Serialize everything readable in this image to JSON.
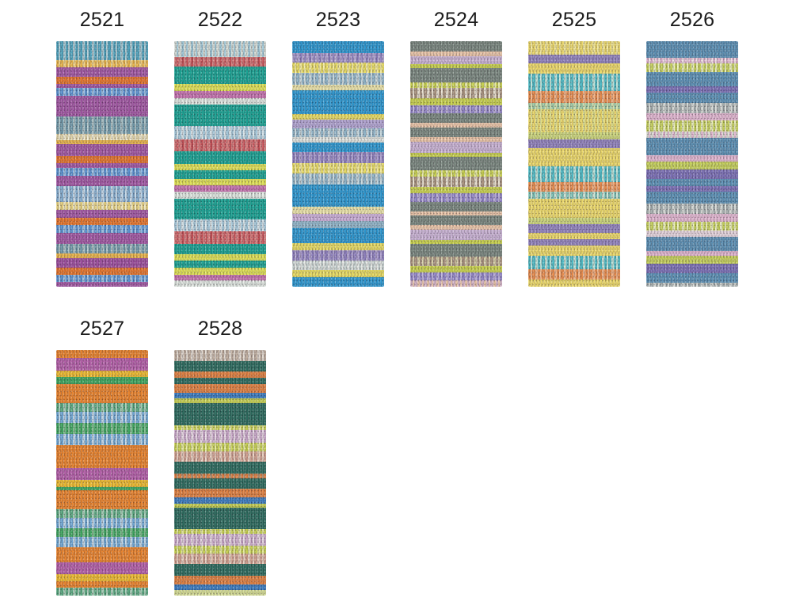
{
  "page": {
    "background": "#ffffff",
    "label_color": "#1c1c1c",
    "description": "Yarn shade card with knitted colorway swatches"
  },
  "swatches": [
    {
      "label": "2521",
      "stripes": [
        [
          "#4fa3bd",
          "#aac9d2",
          24
        ],
        [
          "#e9b54c",
          "#f2d488",
          9
        ],
        [
          "#a158a3",
          null,
          12
        ],
        [
          "#e4762e",
          null,
          9
        ],
        [
          "#a158a3",
          null,
          5
        ],
        [
          "#5a91d0",
          "#9cc0e4",
          10
        ],
        [
          "#a158a3",
          null,
          26
        ],
        [
          "#6f98a8",
          "#a9c0c4",
          22
        ],
        [
          "#e2d5a9",
          "#f0ead0",
          8
        ],
        [
          "#e9b54c",
          null,
          5
        ],
        [
          "#a158a3",
          null,
          15
        ],
        [
          "#e4762e",
          null,
          9
        ],
        [
          "#a158a3",
          null,
          6
        ],
        [
          "#5a91d0",
          "#9cc0e4",
          10
        ],
        [
          "#a158a3",
          null,
          13
        ],
        [
          "#82abcd",
          "#c4d8e8",
          20
        ],
        [
          "#e6d17f",
          "#f0e8c0",
          10
        ],
        [
          "#a158a3",
          null,
          10
        ],
        [
          "#e4762e",
          null,
          9
        ],
        [
          "#5a91d0",
          "#9cc0e4",
          10
        ],
        [
          "#a158a3",
          null,
          14
        ],
        [
          "#6f98a8",
          "#a9c0c4",
          12
        ],
        [
          "#e9b54c",
          null,
          6
        ],
        [
          "#9c4f9e",
          null,
          12
        ],
        [
          "#e4762e",
          null,
          9
        ],
        [
          "#5a91d0",
          "#9cc0e4",
          9
        ],
        [
          "#a158a3",
          null,
          6
        ]
      ]
    },
    {
      "label": "2522",
      "stripes": [
        [
          "#d6ded8",
          "#9fc8d8",
          20
        ],
        [
          "#d87e7e",
          "#c44f55",
          11
        ],
        [
          "#1ba293",
          null,
          22
        ],
        [
          "#dfe156",
          null,
          9
        ],
        [
          "#c472ae",
          null,
          8
        ],
        [
          "#d6ded8",
          "#e8eee8",
          8
        ],
        [
          "#1ba293",
          null,
          27
        ],
        [
          "#a5c8da",
          "#d8e4e8",
          16
        ],
        [
          "#d87e7e",
          "#c44f55",
          15
        ],
        [
          "#1ba293",
          null,
          15
        ],
        [
          "#dfe156",
          null,
          8
        ],
        [
          "#1ba293",
          null,
          11
        ],
        [
          "#dfe156",
          null,
          8
        ],
        [
          "#c472ae",
          null,
          8
        ],
        [
          "#d6ded8",
          "#e8eee8",
          8
        ],
        [
          "#1ba293",
          null,
          26
        ],
        [
          "#a5c8da",
          "#d8e4e8",
          15
        ],
        [
          "#d87e7e",
          "#c44f55",
          15
        ],
        [
          "#1ba293",
          null,
          13
        ],
        [
          "#dfe156",
          null,
          8
        ],
        [
          "#1ba293",
          null,
          9
        ],
        [
          "#dfe156",
          null,
          8
        ],
        [
          "#c472ae",
          null,
          7
        ],
        [
          "#d6ded8",
          "#e8eee8",
          8
        ]
      ]
    },
    {
      "label": "2523",
      "stripes": [
        [
          "#2e97cf",
          null,
          13
        ],
        [
          "#b1a4d1",
          "#8d7fbd",
          11
        ],
        [
          "#e7db63",
          "#f0e8a0",
          12
        ],
        [
          "#90b4c8",
          "#c9d8dc",
          13
        ],
        [
          "#e9e2a8",
          null,
          6
        ],
        [
          "#2e97cf",
          null,
          27
        ],
        [
          "#e7db63",
          null,
          6
        ],
        [
          "#b1a4d1",
          null,
          10
        ],
        [
          "#90b4c8",
          "#c9d8dc",
          10
        ],
        [
          "#dfe3de",
          null,
          6
        ],
        [
          "#2e97cf",
          null,
          11
        ],
        [
          "#8d7fbd",
          "#b1a4d1",
          12
        ],
        [
          "#e7db63",
          "#f0e8a0",
          12
        ],
        [
          "#90b4c8",
          "#c9d8dc",
          12
        ],
        [
          "#2e97cf",
          null,
          25
        ],
        [
          "#e9e2a8",
          null,
          8
        ],
        [
          "#c9aed6",
          null,
          8
        ],
        [
          "#90b4c8",
          null,
          8
        ],
        [
          "#2e97cf",
          null,
          17
        ],
        [
          "#e7db63",
          null,
          8
        ],
        [
          "#8d7fbd",
          "#b1a4d1",
          12
        ],
        [
          "#c9d4d2",
          "#e4e8e4",
          10
        ],
        [
          "#e7db63",
          null,
          8
        ],
        [
          "#2e97cf",
          null,
          11
        ]
      ]
    },
    {
      "label": "2524",
      "stripes": [
        [
          "#79867e",
          null,
          13
        ],
        [
          "#eac5a8",
          null,
          5
        ],
        [
          "#c9b3d4",
          null,
          10
        ],
        [
          "#c8d14f",
          null,
          5
        ],
        [
          "#79867e",
          null,
          17
        ],
        [
          "#c8d14f",
          "#e6e9a8",
          7
        ],
        [
          "#a8937f",
          "#e8e0d0",
          13
        ],
        [
          "#c8d14f",
          null,
          8
        ],
        [
          "#8f83c5",
          "#b9aed9",
          10
        ],
        [
          "#79867e",
          null,
          12
        ],
        [
          "#eac5a8",
          null,
          5
        ],
        [
          "#79867e",
          null,
          12
        ],
        [
          "#eac5a8",
          null,
          6
        ],
        [
          "#c9b3d4",
          null,
          13
        ],
        [
          "#c8d14f",
          null,
          5
        ],
        [
          "#79867e",
          null,
          17
        ],
        [
          "#c8d14f",
          "#e6e9a8",
          7
        ],
        [
          "#a8937f",
          "#e8e0d0",
          13
        ],
        [
          "#c8d14f",
          null,
          8
        ],
        [
          "#8f83c5",
          "#b9aed9",
          10
        ],
        [
          "#79867e",
          null,
          12
        ],
        [
          "#eac5a8",
          null,
          5
        ],
        [
          "#79867e",
          null,
          11
        ],
        [
          "#eac5a8",
          null,
          6
        ],
        [
          "#c9b3d4",
          null,
          13
        ],
        [
          "#c8d14f",
          null,
          5
        ],
        [
          "#79867e",
          null,
          15
        ],
        [
          "#a8937f",
          "#d6cfa8",
          12
        ],
        [
          "#c8d14f",
          null,
          8
        ],
        [
          "#8f83c5",
          "#b9aed9",
          9
        ],
        [
          "#d4b4c6",
          "#eac5a8",
          8
        ]
      ]
    },
    {
      "label": "2525",
      "stripes": [
        [
          "#ecd96b",
          "#f0e69c",
          15
        ],
        [
          "#9183bd",
          null,
          10
        ],
        [
          "#ecd96b",
          null,
          12
        ],
        [
          "#4fbac4",
          "#bfe2d8",
          20
        ],
        [
          "#e58a4c",
          "#f2b488",
          13
        ],
        [
          "#9fc9a4",
          "#d2e2b0",
          8
        ],
        [
          "#ecd96b",
          "#dfe08c",
          26
        ],
        [
          "#ccd67c",
          null,
          8
        ],
        [
          "#9183bd",
          null,
          10
        ],
        [
          "#ecd96b",
          null,
          21
        ],
        [
          "#4fbac4",
          "#bfe2d8",
          18
        ],
        [
          "#e58a4c",
          "#f2b488",
          11
        ],
        [
          "#7fc4b8",
          "#cfe4d4",
          8
        ],
        [
          "#ecd96b",
          null,
          21
        ],
        [
          "#ccd67c",
          null,
          8
        ],
        [
          "#9183bd",
          null,
          10
        ],
        [
          "#ecd96b",
          null,
          7
        ],
        [
          "#9183bd",
          null,
          7
        ],
        [
          "#ecd96b",
          null,
          12
        ],
        [
          "#4fbac4",
          "#bfe2d8",
          15
        ],
        [
          "#e58a4c",
          "#f2b488",
          12
        ],
        [
          "#ecd96b",
          null,
          8
        ]
      ]
    },
    {
      "label": "2526",
      "stripes": [
        [
          "#5c90b4",
          null,
          20
        ],
        [
          "#e0b6d0",
          "#f0dce4",
          7
        ],
        [
          "#c5d05c",
          "#eaeebc",
          11
        ],
        [
          "#5c90b4",
          null,
          17
        ],
        [
          "#7b70b5",
          null,
          8
        ],
        [
          "#5c90b4",
          null,
          12
        ],
        [
          "#a5aeae",
          "#d8dcd8",
          13
        ],
        [
          "#e0b6d0",
          null,
          9
        ],
        [
          "#c5d05c",
          "#eaeebc",
          13
        ],
        [
          "#dcdcd4",
          "#e0b6d0",
          8
        ],
        [
          "#5c90b4",
          null,
          21
        ],
        [
          "#e0b6d0",
          null,
          8
        ],
        [
          "#c5d05c",
          null,
          10
        ],
        [
          "#7b70b5",
          null,
          11
        ],
        [
          "#5c90b4",
          null,
          9
        ],
        [
          "#7b70b5",
          null,
          7
        ],
        [
          "#5c90b4",
          null,
          14
        ],
        [
          "#a5aeae",
          "#d8dcd8",
          13
        ],
        [
          "#e0b6d0",
          null,
          10
        ],
        [
          "#c5d05c",
          "#eaeebc",
          10
        ],
        [
          "#e4d4dc",
          null,
          8
        ],
        [
          "#5c90b4",
          null,
          17
        ],
        [
          "#e0b6d0",
          null,
          6
        ],
        [
          "#c5d05c",
          null,
          10
        ],
        [
          "#7b70b5",
          null,
          12
        ],
        [
          "#5c90b4",
          null,
          11
        ],
        [
          "#a5aeae",
          "#d8dcd8",
          5
        ]
      ]
    },
    {
      "label": "2527",
      "stripes": [
        [
          "#e8842f",
          null,
          9
        ],
        [
          "#b360a8",
          null,
          14
        ],
        [
          "#ecba31",
          null,
          7
        ],
        [
          "#3ea55f",
          null,
          8
        ],
        [
          "#e8842f",
          null,
          21
        ],
        [
          "#58a87f",
          "#a8cfb8",
          10
        ],
        [
          "#6fa7d4",
          "#c2d8e8",
          12
        ],
        [
          "#3ea55f",
          "#7fbf8f",
          12
        ],
        [
          "#6fa7d4",
          "#c2d8e8",
          13
        ],
        [
          "#e8842f",
          null,
          25
        ],
        [
          "#b360a8",
          null,
          13
        ],
        [
          "#ecba31",
          null,
          8
        ],
        [
          "#3ea55f",
          null,
          4
        ],
        [
          "#e8842f",
          null,
          21
        ],
        [
          "#58a87f",
          "#a8cfb8",
          10
        ],
        [
          "#6fa7d4",
          "#c2d8e8",
          11
        ],
        [
          "#3ea55f",
          "#7fbf8f",
          10
        ],
        [
          "#6fa7d4",
          "#c2d8e8",
          11
        ],
        [
          "#e8842f",
          null,
          17
        ],
        [
          "#b360a8",
          null,
          13
        ],
        [
          "#ecba31",
          null,
          8
        ],
        [
          "#e8842f",
          null,
          7
        ],
        [
          "#58a87f",
          "#a8cfb8",
          9
        ]
      ]
    },
    {
      "label": "2528",
      "stripes": [
        [
          "#bfae9f",
          "#e0d8cf",
          13
        ],
        [
          "#2c6b5e",
          null,
          12
        ],
        [
          "#df8142",
          null,
          7
        ],
        [
          "#2c6b5e",
          null,
          7
        ],
        [
          "#df8142",
          null,
          10
        ],
        [
          "#3b7cc0",
          null,
          7
        ],
        [
          "#c6d052",
          null,
          5
        ],
        [
          "#2c6b5e",
          null,
          26
        ],
        [
          "#c6d052",
          "#e4e8a0",
          5
        ],
        [
          "#c9a8c9",
          "#e8d8e4",
          15
        ],
        [
          "#c6d052",
          "#e4e8a0",
          10
        ],
        [
          "#cf9f8e",
          "#e8cfc0",
          12
        ],
        [
          "#2c6b5e",
          null,
          13
        ],
        [
          "#df8142",
          "#b08f6f",
          6
        ],
        [
          "#2c6b5e",
          null,
          12
        ],
        [
          "#df8142",
          null,
          10
        ],
        [
          "#3b7cc0",
          null,
          7
        ],
        [
          "#c6d052",
          null,
          5
        ],
        [
          "#2c6b5e",
          null,
          24
        ],
        [
          "#c6d052",
          "#e4e8a0",
          6
        ],
        [
          "#c9a8c9",
          "#e8d8e4",
          13
        ],
        [
          "#c6d052",
          "#e4e8a0",
          10
        ],
        [
          "#cf9f8e",
          "#e8cfc0",
          11
        ],
        [
          "#2c6b5e",
          null,
          14
        ],
        [
          "#df8142",
          null,
          10
        ],
        [
          "#3b7cc0",
          null,
          7
        ],
        [
          "#d4dc94",
          null,
          6
        ]
      ]
    }
  ]
}
